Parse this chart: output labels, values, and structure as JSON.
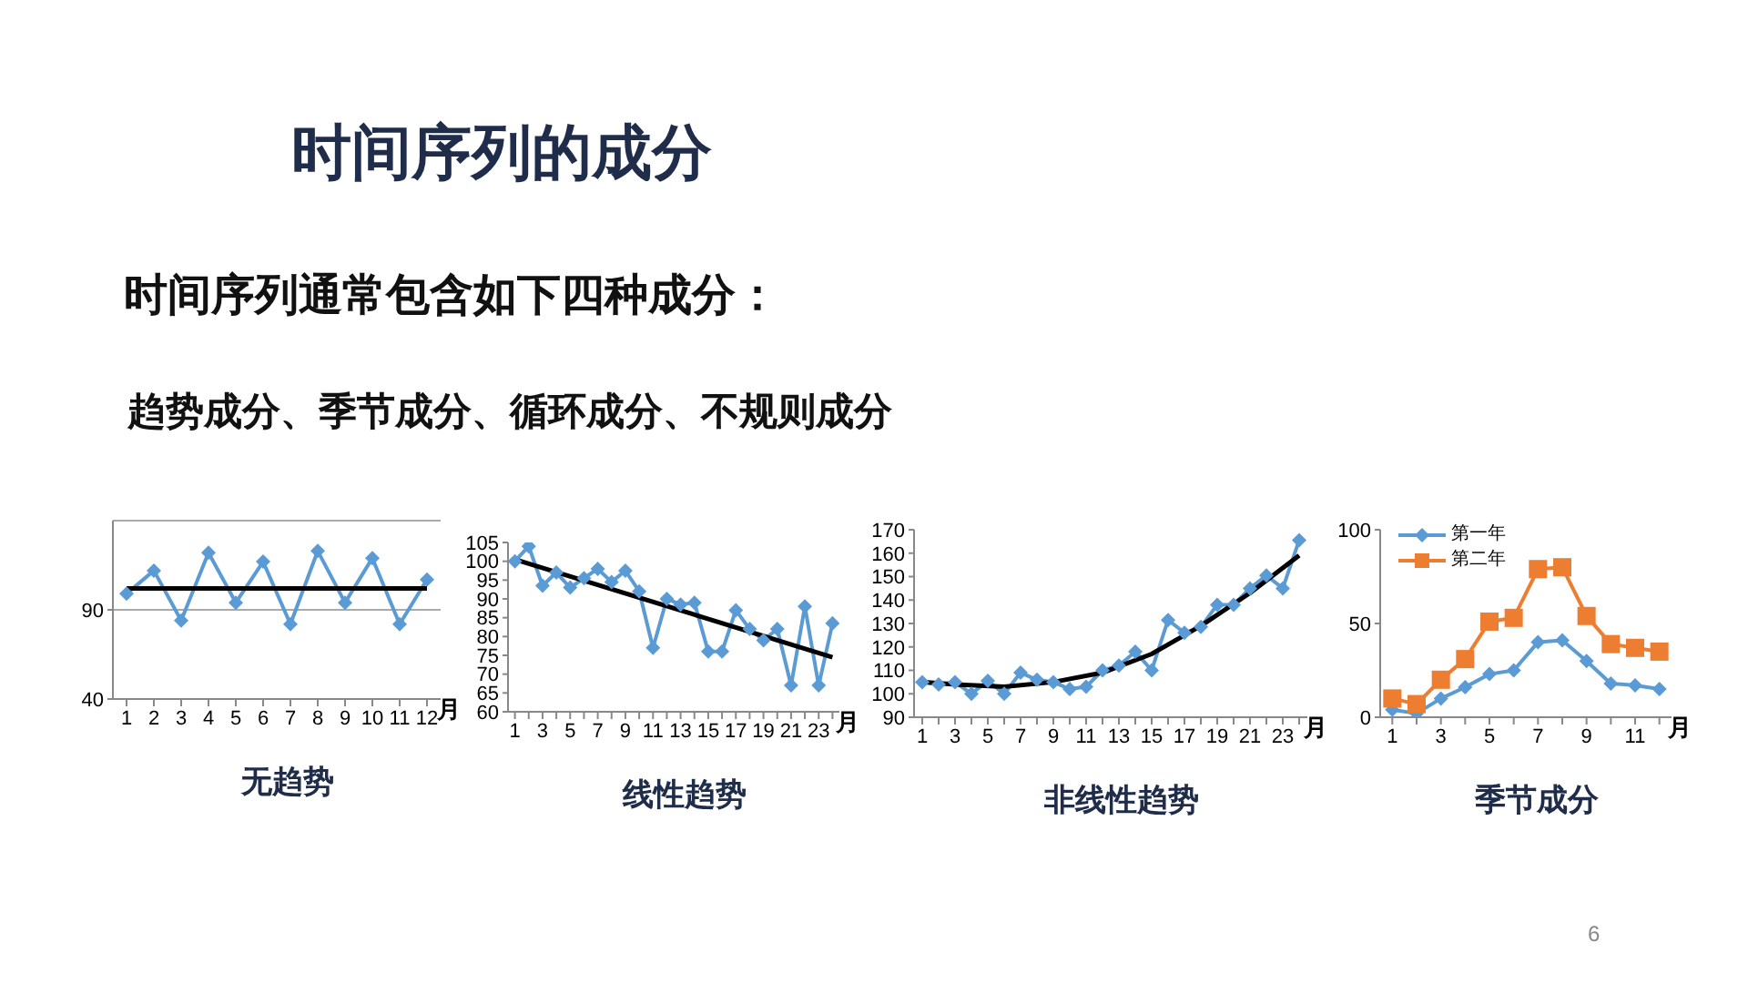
{
  "chart_data": [
    {
      "type": "other",
      "title": "时间序列的成分",
      "subtitle": "时间序列通常包含如下四种成分：",
      "annotations": [
        "趋势成分、季节成分、循环成分、不规则成分",
        "6"
      ]
    },
    {
      "type": "line",
      "title": "无趋势",
      "xlabel": "月",
      "x": [
        1,
        2,
        3,
        4,
        5,
        6,
        7,
        8,
        9,
        10,
        11,
        12
      ],
      "xlim": [
        0.5,
        12.5
      ],
      "xticks": [
        1,
        2,
        3,
        4,
        5,
        6,
        7,
        8,
        9,
        10,
        11,
        12
      ],
      "ylim": [
        40,
        140
      ],
      "yticks": [
        40,
        90
      ],
      "grid": "y",
      "marker": "diamond",
      "series": [
        {
          "color": "#5b9bd5",
          "values": [
            99,
            112,
            84,
            122,
            94,
            117,
            82,
            123,
            94,
            119,
            82,
            107
          ]
        },
        {
          "type": "line",
          "marker": "none",
          "color": "#000000",
          "x": [
            1,
            12
          ],
          "values": [
            102,
            102
          ]
        }
      ]
    },
    {
      "type": "line",
      "title": "线性趋势",
      "xlabel": "月",
      "x": [
        1,
        2,
        3,
        4,
        5,
        6,
        7,
        8,
        9,
        10,
        11,
        12,
        13,
        14,
        15,
        16,
        17,
        18,
        19,
        20,
        21,
        22,
        23,
        24
      ],
      "xlim": [
        0.5,
        24.5
      ],
      "xticks": [
        1,
        {
          "value": 2,
          "label": null
        },
        3,
        {
          "value": 4,
          "label": null
        },
        5,
        {
          "value": 6,
          "label": null
        },
        7,
        {
          "value": 8,
          "label": null
        },
        9,
        {
          "value": 10,
          "label": null
        },
        11,
        {
          "value": 12,
          "label": null
        },
        13,
        {
          "value": 14,
          "label": null
        },
        15,
        {
          "value": 16,
          "label": null
        },
        17,
        {
          "value": 18,
          "label": null
        },
        19,
        {
          "value": 20,
          "label": null
        },
        21,
        {
          "value": 22,
          "label": null
        },
        23,
        {
          "value": 24,
          "label": null
        }
      ],
      "ylim": [
        60,
        105
      ],
      "yticks": [
        60,
        65,
        70,
        75,
        80,
        85,
        90,
        95,
        100,
        105
      ],
      "marker": "diamond",
      "series": [
        {
          "color": "#5b9bd5",
          "values": [
            100,
            104,
            93.5,
            97,
            93,
            95.5,
            98,
            94.5,
            97.5,
            92,
            77,
            90,
            88.5,
            89,
            76,
            76,
            87,
            82,
            79,
            82,
            67,
            88,
            67,
            83.5
          ]
        },
        {
          "type": "line",
          "marker": "none",
          "color": "#000000",
          "x": [
            1,
            24
          ],
          "values": [
            100.5,
            74.5
          ]
        }
      ]
    },
    {
      "type": "line",
      "title": "非线性趋势",
      "xlabel": "月",
      "x": [
        1,
        2,
        3,
        4,
        5,
        6,
        7,
        8,
        9,
        10,
        11,
        12,
        13,
        14,
        15,
        16,
        17,
        18,
        19,
        20,
        21,
        22,
        23,
        24
      ],
      "xlim": [
        0.5,
        24.5
      ],
      "xticks": [
        1,
        {
          "value": 2,
          "label": null
        },
        3,
        {
          "value": 4,
          "label": null
        },
        5,
        {
          "value": 6,
          "label": null
        },
        7,
        {
          "value": 8,
          "label": null
        },
        9,
        {
          "value": 10,
          "label": null
        },
        11,
        {
          "value": 12,
          "label": null
        },
        13,
        {
          "value": 14,
          "label": null
        },
        15,
        {
          "value": 16,
          "label": null
        },
        17,
        {
          "value": 18,
          "label": null
        },
        19,
        {
          "value": 20,
          "label": null
        },
        21,
        {
          "value": 22,
          "label": null
        },
        23,
        {
          "value": 24,
          "label": null
        }
      ],
      "ylim": [
        90,
        170
      ],
      "yticks": [
        90,
        100,
        110,
        120,
        130,
        140,
        150,
        160,
        170
      ],
      "marker": "diamond",
      "series": [
        {
          "color": "#5b9bd5",
          "values": [
            105,
            104,
            105,
            100,
            105.5,
            100,
            109,
            106,
            105,
            102,
            103,
            110,
            112,
            118,
            110,
            131.5,
            126,
            128.5,
            138,
            138,
            145,
            150.5,
            145,
            165.5
          ]
        },
        {
          "type": "line",
          "marker": "none",
          "color": "#000000",
          "x": [
            1,
            3,
            6,
            9,
            12,
            15,
            18,
            21,
            24
          ],
          "values": [
            105,
            104,
            103,
            105,
            109,
            117,
            129,
            143,
            159
          ]
        }
      ]
    },
    {
      "type": "line",
      "title": "季节成分",
      "xlabel": "月",
      "x": [
        1,
        2,
        3,
        4,
        5,
        6,
        7,
        8,
        9,
        10,
        11,
        12
      ],
      "xlim": [
        0.5,
        12.5
      ],
      "xticks": [
        1,
        {
          "value": 2,
          "label": null
        },
        3,
        {
          "value": 4,
          "label": null
        },
        5,
        {
          "value": 6,
          "label": null
        },
        7,
        {
          "value": 8,
          "label": null
        },
        9,
        {
          "value": 10,
          "label": null
        },
        11,
        {
          "value": 12,
          "label": null
        }
      ],
      "ylim": [
        0,
        100
      ],
      "yticks": [
        0,
        50,
        100
      ],
      "legend": "top left",
      "series": [
        {
          "name": "第一年",
          "marker": "diamond",
          "color": "#5b9bd5",
          "values": [
            4,
            2,
            10,
            16,
            23,
            25,
            40,
            41,
            30,
            18,
            17,
            15
          ]
        },
        {
          "name": "第二年",
          "marker": "square",
          "color": "#ed7d31",
          "values": [
            10,
            7,
            20,
            31,
            51,
            53,
            79,
            80,
            54,
            39,
            37,
            35
          ]
        }
      ]
    }
  ]
}
